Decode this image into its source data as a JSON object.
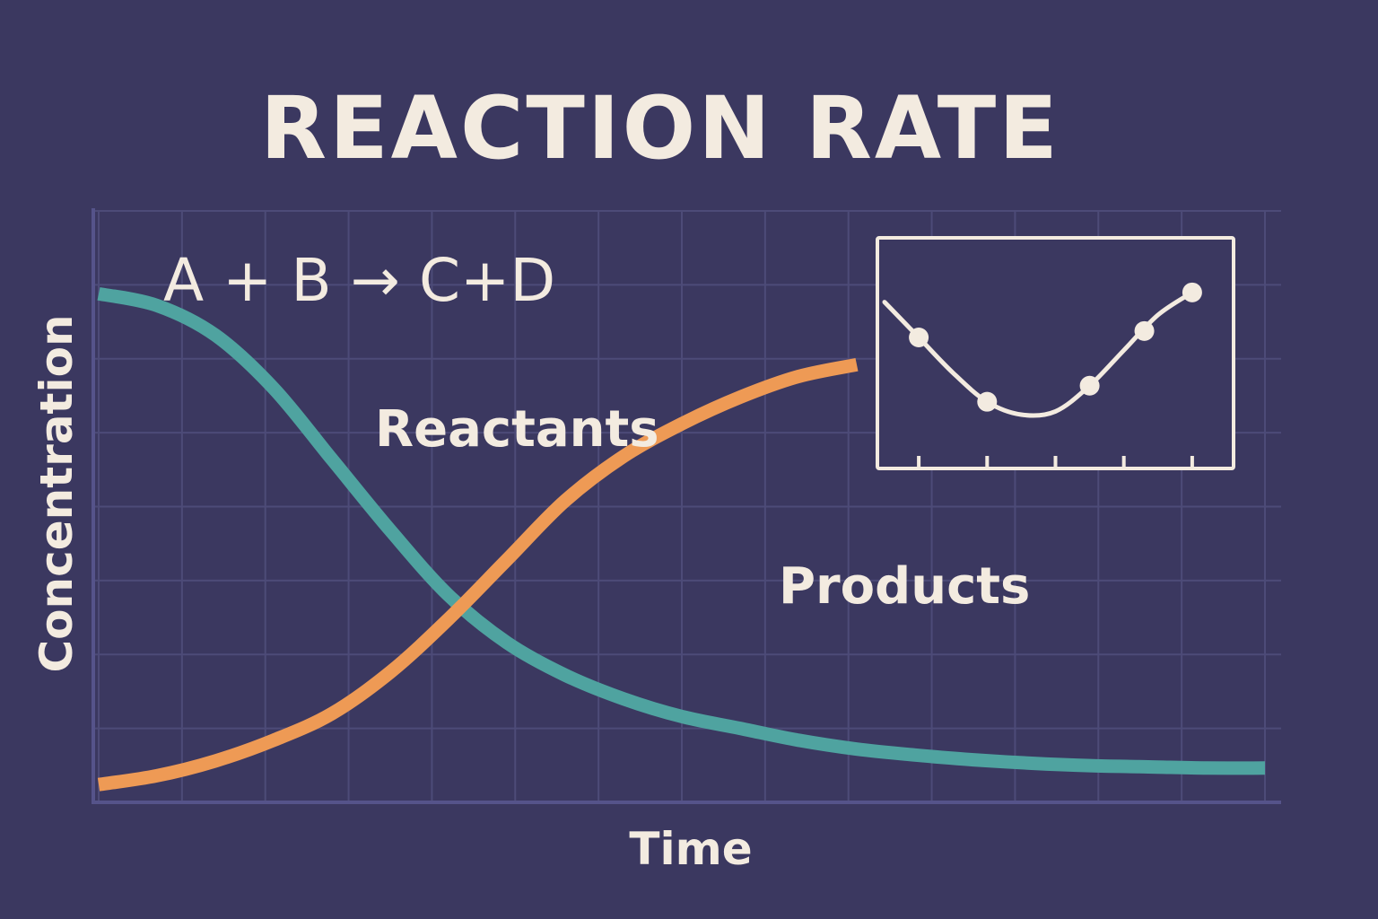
{
  "colors": {
    "background": "#3b3860",
    "grid": "#4d4b78",
    "axis": "#55538a",
    "text": "#f3ebe0",
    "reactants": "#4fa3a0",
    "products": "#ee9a55"
  },
  "chart_data": {
    "type": "line",
    "title": "REACTION RATE",
    "equation": "A + B → C+D",
    "xlabel": "Time",
    "ylabel": "Concentration",
    "xlim": [
      0,
      10
    ],
    "ylim": [
      0,
      10
    ],
    "grid": true,
    "series": [
      {
        "name": "Reactants",
        "color": "#4fa3a0",
        "x": [
          0,
          0.5,
          1,
          1.5,
          2,
          2.5,
          3,
          3.5,
          4,
          4.5,
          5,
          5.5,
          6,
          6.5,
          7,
          7.5,
          8,
          8.5,
          9,
          9.5,
          10
        ],
        "y": [
          8.6,
          8.4,
          7.9,
          7.0,
          5.8,
          4.6,
          3.5,
          2.7,
          2.15,
          1.75,
          1.45,
          1.25,
          1.05,
          0.9,
          0.8,
          0.72,
          0.66,
          0.62,
          0.6,
          0.58,
          0.58
        ]
      },
      {
        "name": "Products",
        "color": "#ee9a55",
        "x": [
          0,
          0.5,
          1,
          1.5,
          2,
          2.5,
          3,
          3.5,
          4,
          4.5,
          5,
          5.5,
          6,
          6.5
        ],
        "y": [
          0.3,
          0.45,
          0.7,
          1.05,
          1.5,
          2.2,
          3.1,
          4.1,
          5.1,
          5.85,
          6.4,
          6.85,
          7.2,
          7.4
        ]
      }
    ],
    "inset": {
      "type": "line",
      "x": [
        0,
        0.5,
        1,
        1.5,
        2,
        2.5,
        3,
        3.5,
        4,
        4.5
      ],
      "y": [
        4.7,
        3.6,
        2.5,
        1.6,
        1.2,
        1.3,
        2.1,
        3.2,
        4.3,
        5.0
      ],
      "markers": [
        {
          "x": 0.5,
          "y": 3.6
        },
        {
          "x": 1.5,
          "y": 1.6
        },
        {
          "x": 3.0,
          "y": 2.1
        },
        {
          "x": 3.8,
          "y": 3.8
        },
        {
          "x": 4.5,
          "y": 5.0
        }
      ],
      "xticks": [
        0.5,
        1.5,
        2.5,
        3.5,
        4.5
      ],
      "xlim": [
        0,
        5
      ],
      "ylim": [
        0,
        6
      ]
    }
  }
}
